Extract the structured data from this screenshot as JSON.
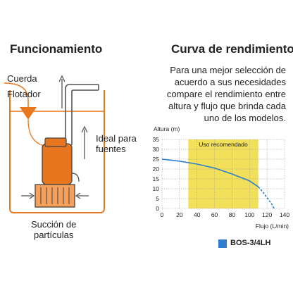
{
  "left": {
    "heading": "Funcionamiento",
    "label_cuerda": "Cuerda",
    "label_flotador": "Flotador",
    "label_ideal_line1": "Ideal para",
    "label_ideal_line2": "fuentes",
    "label_succion_line1": "Succión de",
    "label_succion_line2": "partículas"
  },
  "right": {
    "heading": "Curva de rendimiento",
    "description_lines": [
      "Para una mejor selección de",
      "acuerdo a sus necesidades",
      "compare el rendimiento entre",
      "altura y flujo que brinda cada",
      "uno de los modelos."
    ]
  },
  "legend": {
    "label": "BOS-3/4LH",
    "color": "#2f7dd1"
  },
  "colors": {
    "orange": "#e8771e",
    "highlight": "#f2e05a",
    "curve": "#2f7dd1",
    "pump_fill": "#e8761f"
  },
  "chart_data": {
    "type": "line",
    "ylabel": "Altura (m)",
    "xlabel": "Flujo (L/min)",
    "xlim": [
      0,
      140
    ],
    "ylim": [
      0,
      35
    ],
    "xticks": [
      0,
      20,
      40,
      60,
      80,
      100,
      120,
      140
    ],
    "yticks": [
      0,
      5,
      10,
      15,
      20,
      25,
      30,
      35
    ],
    "grid": true,
    "highlight_band": {
      "label": "Uso recomendado",
      "x": [
        30,
        110
      ]
    },
    "series": [
      {
        "name": "BOS-3/4LH",
        "solid": {
          "x": [
            0,
            20,
            40,
            60,
            80,
            100,
            110
          ],
          "y": [
            25,
            24,
            22.5,
            20.5,
            17.5,
            14,
            11
          ]
        },
        "dashed": {
          "x": [
            110,
            115,
            120,
            125,
            128
          ],
          "y": [
            11,
            8.5,
            5.5,
            2.5,
            0
          ]
        }
      }
    ]
  }
}
